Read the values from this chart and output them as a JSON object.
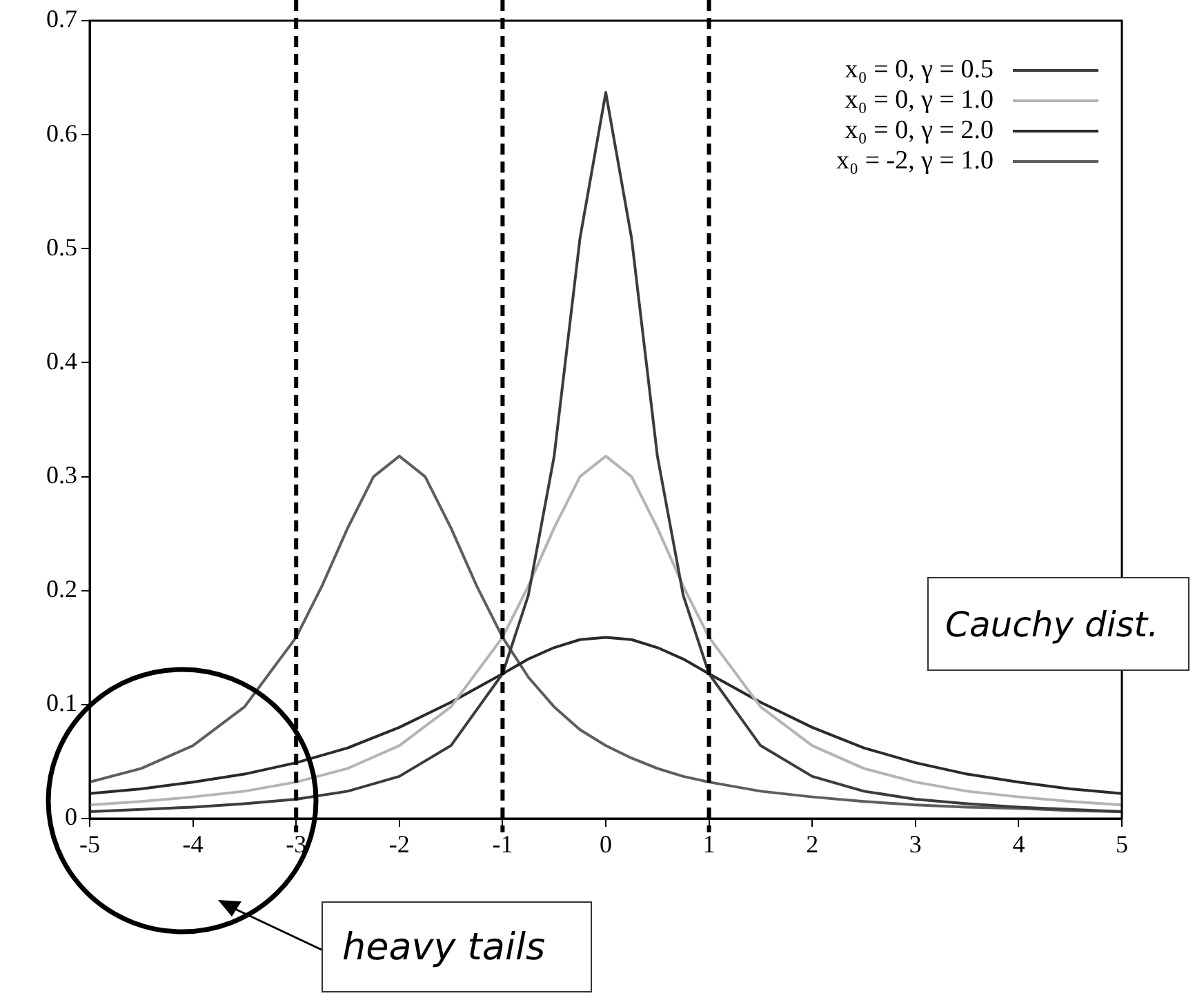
{
  "chart_data": {
    "type": "line",
    "xlim": [
      -5,
      5
    ],
    "xticks": [
      -5,
      -4,
      -3,
      -2,
      -1,
      0,
      1,
      2,
      3,
      4,
      5
    ],
    "ylim": [
      0,
      0.7
    ],
    "yticks": [
      0,
      0.1,
      0.2,
      0.3,
      0.4,
      0.5,
      0.6,
      0.7
    ],
    "grid": false,
    "legend": "top right",
    "marker": "none",
    "line_style": "solid",
    "series": [
      {
        "name": "x₀ =  0, γ = 0.5",
        "color": "#3c3c3c",
        "x": [
          -5,
          -4.5,
          -4,
          -3.5,
          -3,
          -2.5,
          -2,
          -1.5,
          -1,
          -0.75,
          -0.5,
          -0.25,
          0,
          0.25,
          0.5,
          0.75,
          1,
          1.5,
          2,
          2.5,
          3,
          3.5,
          4,
          4.5,
          5
        ],
        "values": [
          0.006,
          0.008,
          0.01,
          0.013,
          0.017,
          0.024,
          0.037,
          0.064,
          0.127,
          0.196,
          0.318,
          0.509,
          0.637,
          0.509,
          0.318,
          0.196,
          0.127,
          0.064,
          0.037,
          0.024,
          0.017,
          0.013,
          0.01,
          0.008,
          0.006
        ]
      },
      {
        "name": "x₀ =  0, γ = 1.0",
        "color": "#b4b4b4",
        "x": [
          -5,
          -4.5,
          -4,
          -3.5,
          -3,
          -2.5,
          -2,
          -1.5,
          -1,
          -0.75,
          -0.5,
          -0.25,
          0,
          0.25,
          0.5,
          0.75,
          1,
          1.5,
          2,
          2.5,
          3,
          3.5,
          4,
          4.5,
          5
        ],
        "values": [
          0.012,
          0.015,
          0.019,
          0.024,
          0.032,
          0.044,
          0.064,
          0.098,
          0.159,
          0.204,
          0.255,
          0.3,
          0.318,
          0.3,
          0.255,
          0.204,
          0.159,
          0.098,
          0.064,
          0.044,
          0.032,
          0.024,
          0.019,
          0.015,
          0.012
        ]
      },
      {
        "name": "x₀ =  0, γ = 2.0",
        "color": "#2a2a2a",
        "x": [
          -5,
          -4.5,
          -4,
          -3.5,
          -3,
          -2.5,
          -2,
          -1.5,
          -1,
          -0.75,
          -0.5,
          -0.25,
          0,
          0.25,
          0.5,
          0.75,
          1,
          1.5,
          2,
          2.5,
          3,
          3.5,
          4,
          4.5,
          5
        ],
        "values": [
          0.022,
          0.026,
          0.032,
          0.039,
          0.049,
          0.062,
          0.08,
          0.102,
          0.127,
          0.14,
          0.15,
          0.157,
          0.159,
          0.157,
          0.15,
          0.14,
          0.127,
          0.102,
          0.08,
          0.062,
          0.049,
          0.039,
          0.032,
          0.026,
          0.022
        ]
      },
      {
        "name": "x₀ = -2, γ = 1.0",
        "color": "#5e5e5e",
        "x": [
          -5,
          -4.5,
          -4,
          -3.5,
          -3,
          -2.75,
          -2.5,
          -2.25,
          -2,
          -1.75,
          -1.5,
          -1.25,
          -1,
          -0.75,
          -0.5,
          -0.25,
          0,
          0.25,
          0.5,
          0.75,
          1,
          1.5,
          2,
          2.5,
          3,
          3.5,
          4,
          4.5,
          5
        ],
        "values": [
          0.032,
          0.044,
          0.064,
          0.098,
          0.159,
          0.204,
          0.255,
          0.3,
          0.318,
          0.3,
          0.255,
          0.204,
          0.159,
          0.124,
          0.098,
          0.078,
          0.064,
          0.053,
          0.044,
          0.037,
          0.032,
          0.024,
          0.019,
          0.015,
          0.012,
          0.01,
          0.009,
          0.007,
          0.006
        ]
      }
    ],
    "ref_lines": [
      {
        "axis": "x",
        "value": -3,
        "color": "#000000",
        "line_style": "dashed"
      },
      {
        "axis": "x",
        "value": -1,
        "color": "#000000",
        "line_style": "dashed"
      },
      {
        "axis": "x",
        "value": 1,
        "color": "#000000",
        "line_style": "dashed"
      }
    ],
    "annotations": [
      "Cauchy dist.",
      "heavy tails"
    ]
  }
}
